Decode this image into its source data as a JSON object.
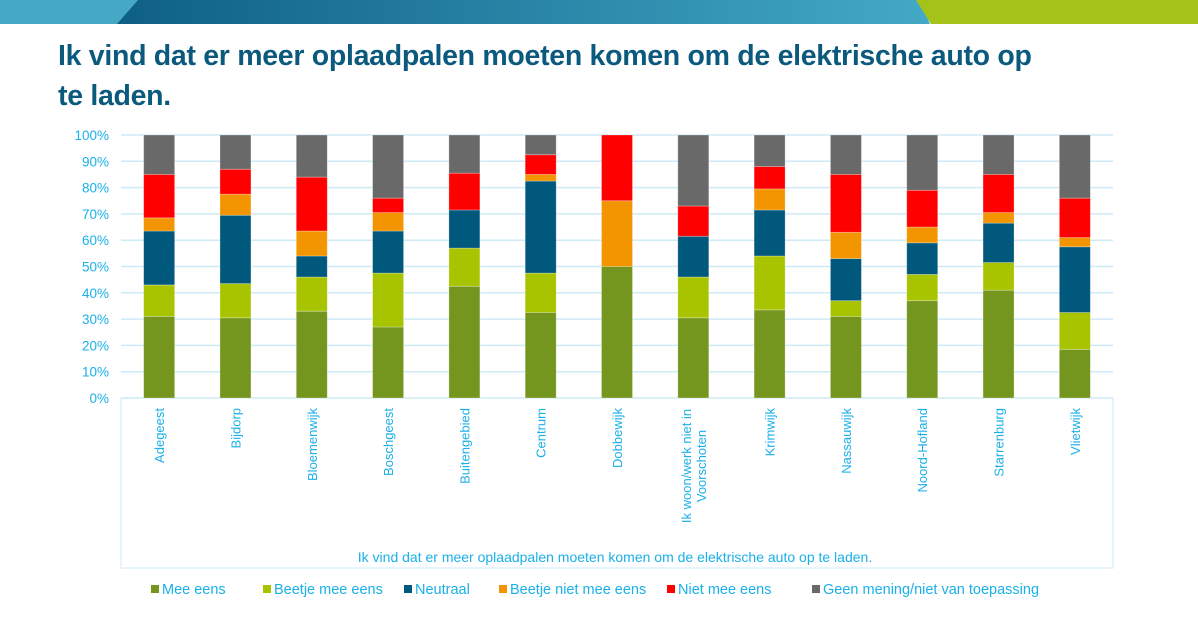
{
  "page": {
    "title": "Ik vind dat er meer oplaadpalen moeten komen om de elektrische auto op te laden.",
    "title_lines": [
      "Ik vind dat er meer oplaadpalen moeten komen om de elektrische auto op",
      "te laden."
    ]
  },
  "theme": {
    "banner_colors": [
      "#45a8c4",
      "#0e5f86",
      "#3aa0bf",
      "#a4c21a"
    ],
    "title_color": "#0b5a7e",
    "axis_text_color": "#1ab0e8",
    "grid_color": "#cfeaf7"
  },
  "chart_data": {
    "type": "bar",
    "stacked": true,
    "percent_stacked": true,
    "title": "",
    "xlabel": "Ik vind dat er meer oplaadpalen moeten komen om de elektrische auto op te laden.",
    "ylabel": "",
    "ylim": [
      0,
      100
    ],
    "y_ticks": [
      "0%",
      "10%",
      "20%",
      "30%",
      "40%",
      "50%",
      "60%",
      "70%",
      "80%",
      "90%",
      "100%"
    ],
    "grid": true,
    "legend_position": "bottom",
    "categories": [
      "Adegeest",
      "Bijdorp",
      "Bloemenwijk",
      "Boschgeest",
      "Buitengebied",
      "Centrum",
      "Dobbewijk",
      "Ik woon/werk niet in Voorschoten",
      "Krimwijk",
      "Nassauwijk",
      "Noord-Hofland",
      "Starrenburg",
      "Vlietwijk"
    ],
    "category_label_lines": [
      [
        "Adegeest"
      ],
      [
        "Bijdorp"
      ],
      [
        "Bloemenwijk"
      ],
      [
        "Boschgeest"
      ],
      [
        "Buitengebied"
      ],
      [
        "Centrum"
      ],
      [
        "Dobbewijk"
      ],
      [
        "Ik woon/werk niet in",
        "Voorschoten"
      ],
      [
        "Krimwijk"
      ],
      [
        "Nassauwijk"
      ],
      [
        "Noord-Hofland"
      ],
      [
        "Starrenburg"
      ],
      [
        "Vlietwijk"
      ]
    ],
    "series": [
      {
        "name": "Mee eens",
        "color": "#74961e",
        "values": [
          31,
          30.5,
          33,
          27,
          42.5,
          32.5,
          50,
          30.5,
          33.5,
          31,
          37,
          41,
          18.5
        ]
      },
      {
        "name": "Beetje mee eens",
        "color": "#a8c300",
        "values": [
          12,
          13,
          13,
          20.5,
          14.5,
          15,
          0,
          15.5,
          20.5,
          6,
          10,
          10.5,
          14
        ]
      },
      {
        "name": "Neutraal",
        "color": "#00587c",
        "values": [
          20.5,
          26,
          8,
          16,
          14.5,
          35,
          0,
          15.5,
          17.5,
          16,
          12,
          15,
          25
        ]
      },
      {
        "name": "Beetje niet mee eens",
        "color": "#f39500",
        "values": [
          5,
          8,
          9.5,
          7,
          0,
          2.5,
          25,
          0,
          8,
          10,
          6,
          4,
          3.5
        ]
      },
      {
        "name": "Niet mee eens",
        "color": "#ff0000",
        "values": [
          16.5,
          9.5,
          20.5,
          5.5,
          14,
          7.5,
          25,
          11.5,
          8.5,
          22,
          14,
          14.5,
          15
        ]
      },
      {
        "name": "Geen mening/niet van toepassing",
        "color": "#696969",
        "values": [
          15,
          13,
          16,
          24,
          14.5,
          7.5,
          0,
          27,
          12,
          15,
          21,
          15,
          24
        ]
      }
    ]
  }
}
